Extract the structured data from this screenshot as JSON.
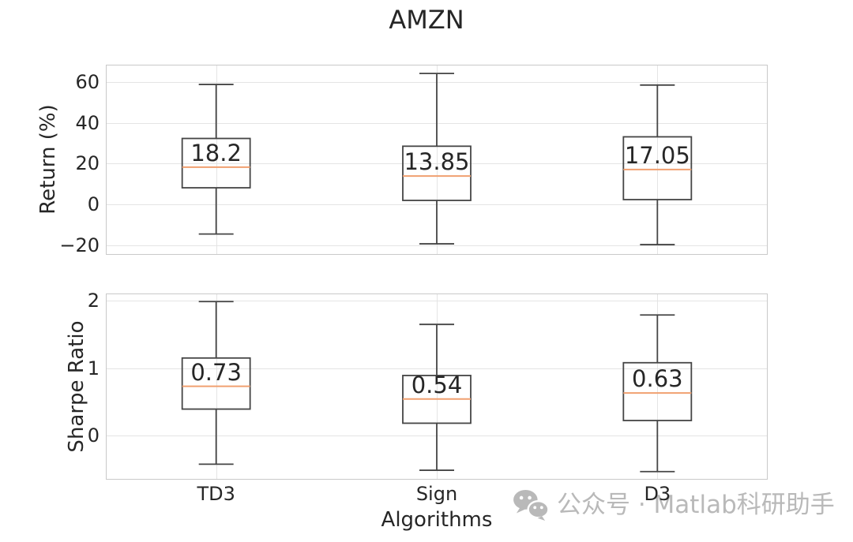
{
  "title": "AMZN",
  "watermark": {
    "icon": "wechat-icon",
    "text": "公众号 · Matlab科研助手"
  },
  "colors": {
    "box_stroke": "#454545",
    "median_line": "#f0a070",
    "grid": "#e4e4e4",
    "frame": "#c9c9c9",
    "text": "#262626",
    "watermark": "#b9b9b9"
  },
  "chart_data": [
    {
      "type": "boxplot",
      "panel": "top",
      "ylabel": "Return (%)",
      "yticks": [
        60,
        40,
        20,
        0,
        -20
      ],
      "ytick_labels": [
        "60",
        "40",
        "20",
        "0",
        "−20"
      ],
      "ylim": [
        -24.8,
        68.5
      ],
      "grid": true,
      "categories": [
        "TD3",
        "Sign",
        "D3"
      ],
      "series": [
        {
          "category": "TD3",
          "whisker_low": -14.6,
          "q1": 8.1,
          "median": 18.2,
          "q3": 32.3,
          "whisker_high": 58.8,
          "label": "18.2"
        },
        {
          "category": "Sign",
          "whisker_low": -19.4,
          "q1": 1.9,
          "median": 13.85,
          "q3": 28.5,
          "whisker_high": 64.2,
          "label": "13.85"
        },
        {
          "category": "D3",
          "whisker_low": -19.8,
          "q1": 2.3,
          "median": 17.05,
          "q3": 33.1,
          "whisker_high": 58.5,
          "label": "17.05"
        }
      ]
    },
    {
      "type": "boxplot",
      "panel": "bottom",
      "ylabel": "Sharpe Ratio",
      "xlabel": "Algorithms",
      "yticks": [
        2,
        1,
        0
      ],
      "ytick_labels": [
        "2",
        "1",
        "0"
      ],
      "ylim": [
        -0.66,
        2.11
      ],
      "grid": true,
      "categories": [
        "TD3",
        "Sign",
        "D3"
      ],
      "series": [
        {
          "category": "TD3",
          "whisker_low": -0.43,
          "q1": 0.39,
          "median": 0.73,
          "q3": 1.15,
          "whisker_high": 1.99,
          "label": "0.73"
        },
        {
          "category": "Sign",
          "whisker_low": -0.52,
          "q1": 0.18,
          "median": 0.54,
          "q3": 0.89,
          "whisker_high": 1.65,
          "label": "0.54"
        },
        {
          "category": "D3",
          "whisker_low": -0.54,
          "q1": 0.22,
          "median": 0.63,
          "q3": 1.08,
          "whisker_high": 1.79,
          "label": "0.63"
        }
      ]
    }
  ]
}
